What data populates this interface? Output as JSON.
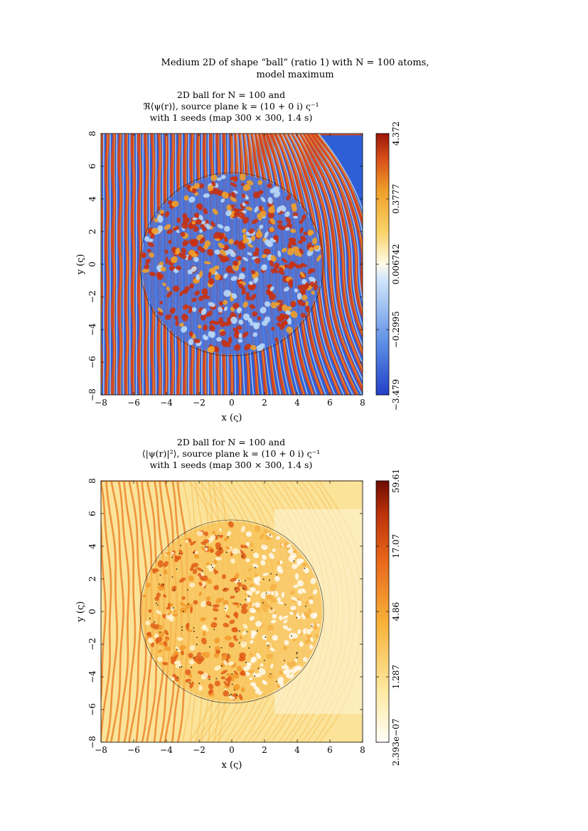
{
  "figure": {
    "title_line1": "Medium 2D of shape “ball” (ratio 1) with N = 100 atoms,",
    "title_line2": "model maximum"
  },
  "panels": [
    {
      "title_line1": "2D ball for N = 100 and",
      "title_line2": "ℜ⟨ψ(r)⟩, source plane k = (10 + 0 i) ς⁻¹",
      "title_line3": "with 1 seeds (map 300 × 300, 1.4 s)",
      "xlabel": "x (ς)",
      "ylabel": "y (ς)",
      "colorbar_ticks": [
        "−3.479",
        "−0.2995",
        "0.006742",
        "0.3777",
        "4.372"
      ]
    },
    {
      "title_line1": "2D ball for N = 100 and",
      "title_line2": "⟨|ψ(r)|²⟩, source plane k = (10 + 0 i) ς⁻¹",
      "title_line3": "with 1 seeds (map 300 × 300, 1.4 s)",
      "xlabel": "x (ς)",
      "ylabel": "y (ς)",
      "colorbar_ticks": [
        "2.393e−07",
        "1.287",
        "4.86",
        "17.07",
        "59.61"
      ]
    }
  ],
  "axis_ticks": [
    "−8",
    "−6",
    "−4",
    "−2",
    "0",
    "2",
    "4",
    "6",
    "8"
  ],
  "chart_data": [
    {
      "type": "heatmap",
      "quantity": "real part of mean wavefunction",
      "xlim": [
        -8,
        8
      ],
      "ylim": [
        -8,
        8
      ],
      "circle_radius": 5.6,
      "colormap": [
        "#2c4fc7",
        "#86b8f0",
        "#ffffff",
        "#f5c24a",
        "#e2641e",
        "#c0230f"
      ],
      "colorbar_range": [
        -3.479,
        4.372
      ]
    },
    {
      "type": "heatmap",
      "quantity": "mean intensity",
      "xlim": [
        -8,
        8
      ],
      "ylim": [
        -8,
        8
      ],
      "circle_radius": 5.6,
      "colormap": [
        "#fffdf2",
        "#fde69a",
        "#f8b43c",
        "#ea7a1c",
        "#c4380a",
        "#7a0f00"
      ],
      "colorbar_range": [
        2.393e-07,
        59.61
      ]
    }
  ]
}
